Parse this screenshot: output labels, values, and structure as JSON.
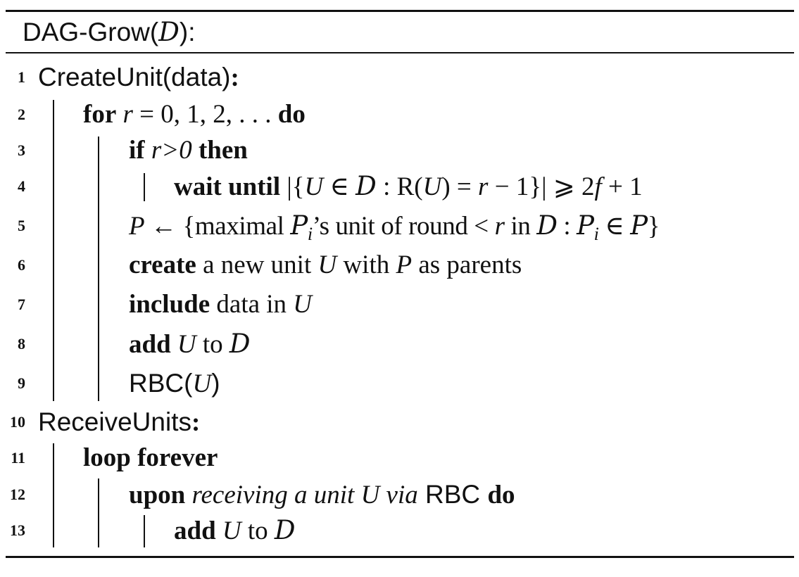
{
  "header": {
    "name": "DAG-Grow(",
    "arg": "D",
    "close": "):"
  },
  "lines": {
    "1": {
      "num": "1",
      "proc": "CreateUnit(data)",
      "colon": ":"
    },
    "2": {
      "num": "2",
      "kw1": "for",
      "var": "r",
      "range": " = 0, 1, 2, . . . ",
      "kw2": "do"
    },
    "3": {
      "num": "3",
      "kw1": "if",
      "cond": "r>0",
      "kw2": "then"
    },
    "4": {
      "num": "4",
      "kw1": "wait until",
      "p1": " |{",
      "u": "U",
      "p2": " ∈ ",
      "d": "D",
      "p3": " : R(",
      "u2": "U",
      "p4": ") = ",
      "r": "r",
      "p5": " − 1}| ⩾ 2",
      "f": "f",
      "p6": " + 1"
    },
    "5": {
      "num": "5",
      "p": "P",
      "a1": " ← {maximal ",
      "pi": "P",
      "i": "i",
      "a2": "’s unit of round < ",
      "r": "r",
      "a3": " in ",
      "d": "D",
      "a4": " : ",
      "pi2": "P",
      "i2": "i",
      "a5": " ∈ ",
      "pset": "P",
      "a6": "}"
    },
    "6": {
      "num": "6",
      "kw1": "create",
      "a1": " a new unit ",
      "u": "U",
      "a2": " with ",
      "p": "P",
      "a3": " as parents"
    },
    "7": {
      "num": "7",
      "kw1": "include",
      "a1": " data in ",
      "u": "U"
    },
    "8": {
      "num": "8",
      "kw1": "add",
      "u": "U",
      "a1": " to ",
      "d": "D"
    },
    "9": {
      "num": "9",
      "a1": "RBC(",
      "u": "U",
      "a2": ")"
    },
    "10": {
      "num": "10",
      "proc": "ReceiveUnits",
      "colon": ":"
    },
    "11": {
      "num": "11",
      "kw1": "loop forever"
    },
    "12": {
      "num": "12",
      "kw1": "upon",
      "it": "receiving a unit U via",
      "a1": " RBC ",
      "kw2": "do"
    },
    "13": {
      "num": "13",
      "kw1": "add",
      "u": "U",
      "a1": " to ",
      "d": "D"
    }
  }
}
